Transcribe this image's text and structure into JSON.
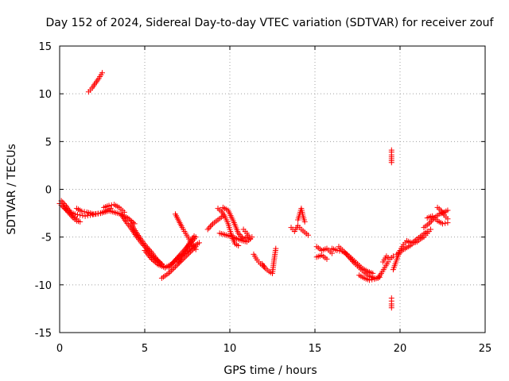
{
  "chart_data": {
    "type": "scatter",
    "title": "Day 152 of 2024, Sidereal Day-to-day VTEC variation (SDTVAR) for receiver zouf",
    "xlabel": "GPS time / hours",
    "ylabel": "SDTVAR / TECUs",
    "xlim": [
      0,
      25
    ],
    "ylim": [
      -15,
      15
    ],
    "xticks": [
      0,
      5,
      10,
      15,
      20,
      25
    ],
    "yticks": [
      -15,
      -10,
      -5,
      0,
      5,
      10,
      15
    ],
    "grid": true,
    "marker": "+",
    "marker_color": "#ff0000",
    "series": [
      {
        "name": "SDTVAR",
        "segments": [
          {
            "x": [
              0.0,
              0.3,
              0.6,
              0.9,
              1.2,
              1.5,
              1.8,
              2.1,
              2.4,
              2.7,
              3.0
            ],
            "y": [
              -1.5,
              -2.0,
              -2.4,
              -2.6,
              -2.7,
              -2.8,
              -2.7,
              -2.6,
              -2.5,
              -2.3,
              -2.0
            ]
          },
          {
            "x": [
              0.2,
              0.5,
              0.8,
              1.0,
              1.2
            ],
            "y": [
              -1.8,
              -2.4,
              -3.0,
              -3.3,
              -3.4
            ]
          },
          {
            "x": [
              0.1,
              0.4,
              0.7,
              1.0
            ],
            "y": [
              -1.2,
              -1.8,
              -2.6,
              -3.1
            ]
          },
          {
            "x": [
              1.0,
              1.3,
              1.6,
              2.0,
              2.4,
              2.8
            ],
            "y": [
              -2.0,
              -2.3,
              -2.4,
              -2.6,
              -2.5,
              -2.3
            ]
          },
          {
            "x": [
              1.7,
              1.9,
              2.1,
              2.3,
              2.5
            ],
            "y": [
              10.2,
              10.6,
              11.1,
              11.6,
              12.2
            ]
          },
          {
            "x": [
              2.8,
              3.2,
              3.6,
              4.0,
              4.4
            ],
            "y": [
              -2.2,
              -2.4,
              -2.6,
              -3.0,
              -3.6
            ]
          },
          {
            "x": [
              2.6,
              2.9,
              3.2,
              3.5,
              3.8
            ],
            "y": [
              -1.9,
              -1.7,
              -1.6,
              -1.9,
              -2.4
            ]
          },
          {
            "x": [
              3.6,
              3.9,
              4.2,
              4.5,
              4.8,
              5.1,
              5.4,
              5.7,
              6.0
            ],
            "y": [
              -2.6,
              -3.4,
              -4.1,
              -4.9,
              -5.6,
              -6.2,
              -6.9,
              -7.4,
              -7.8
            ]
          },
          {
            "x": [
              4.2,
              4.5,
              4.8,
              5.1,
              5.4,
              5.7,
              6.0,
              6.2
            ],
            "y": [
              -3.6,
              -4.5,
              -5.3,
              -6.0,
              -6.6,
              -7.3,
              -7.9,
              -8.2
            ]
          },
          {
            "x": [
              5.0,
              5.4,
              5.8,
              6.2,
              6.6,
              7.0,
              7.4,
              7.8,
              8.2
            ],
            "y": [
              -6.4,
              -7.3,
              -7.9,
              -8.2,
              -7.8,
              -7.1,
              -6.6,
              -6.0,
              -5.6
            ]
          },
          {
            "x": [
              6.0,
              6.4,
              6.8,
              7.2,
              7.6,
              8.0
            ],
            "y": [
              -9.3,
              -8.8,
              -8.1,
              -7.4,
              -6.7,
              -6.0
            ]
          },
          {
            "x": [
              6.4,
              6.8,
              7.2,
              7.6,
              8.0
            ],
            "y": [
              -8.2,
              -7.4,
              -6.6,
              -5.8,
              -5.0
            ]
          },
          {
            "x": [
              7.0,
              7.3,
              7.6,
              7.9
            ],
            "y": [
              -7.6,
              -6.6,
              -5.7,
              -4.9
            ]
          },
          {
            "x": [
              6.8,
              7.0,
              7.2,
              7.4,
              7.6,
              7.8,
              8.0
            ],
            "y": [
              -2.6,
              -3.3,
              -4.0,
              -4.6,
              -5.2,
              -5.8,
              -6.3
            ]
          },
          {
            "x": [
              8.7,
              9.0,
              9.3,
              9.6
            ],
            "y": [
              -4.2,
              -3.6,
              -3.2,
              -2.8
            ]
          },
          {
            "x": [
              9.3,
              9.5,
              9.7,
              9.9,
              10.1,
              10.3,
              10.5
            ],
            "y": [
              -2.0,
              -2.3,
              -2.8,
              -3.6,
              -4.8,
              -5.7,
              -5.9
            ]
          },
          {
            "x": [
              9.6,
              9.9,
              10.2,
              10.5,
              10.8,
              11.0
            ],
            "y": [
              -1.9,
              -2.2,
              -3.3,
              -4.6,
              -5.2,
              -5.0
            ]
          },
          {
            "x": [
              9.4,
              9.8,
              10.2,
              10.6,
              11.0,
              11.3
            ],
            "y": [
              -4.6,
              -4.8,
              -5.0,
              -5.3,
              -5.5,
              -5.0
            ]
          },
          {
            "x": [
              10.8,
              11.0,
              11.2
            ],
            "y": [
              -4.2,
              -4.6,
              -5.2
            ]
          },
          {
            "x": [
              11.4,
              11.6,
              11.8,
              12.0
            ],
            "y": [
              -6.8,
              -7.4,
              -7.8,
              -8.1
            ]
          },
          {
            "x": [
              11.9,
              12.1,
              12.3,
              12.5,
              12.6,
              12.7
            ],
            "y": [
              -7.8,
              -8.3,
              -8.6,
              -8.8,
              -7.4,
              -6.2
            ]
          },
          {
            "x": [
              13.6,
              13.8,
              14.0,
              14.2,
              14.4,
              14.6
            ],
            "y": [
              -4.0,
              -4.4,
              -3.8,
              -4.2,
              -4.5,
              -4.8
            ]
          },
          {
            "x": [
              14.0,
              14.1,
              14.2,
              14.3,
              14.4
            ],
            "y": [
              -3.2,
              -2.6,
              -2.0,
              -2.8,
              -3.4
            ]
          },
          {
            "x": [
              15.1,
              15.4,
              15.7,
              16.0
            ],
            "y": [
              -6.0,
              -6.4,
              -6.2,
              -6.7
            ]
          },
          {
            "x": [
              15.1,
              15.4,
              15.7
            ],
            "y": [
              -7.1,
              -6.9,
              -7.3
            ]
          },
          {
            "x": [
              16.0,
              16.3,
              16.6,
              16.9,
              17.2,
              17.5,
              17.8,
              18.1,
              18.4
            ],
            "y": [
              -6.2,
              -6.4,
              -6.5,
              -6.8,
              -7.3,
              -7.8,
              -8.3,
              -8.6,
              -8.8
            ]
          },
          {
            "x": [
              16.4,
              16.7,
              17.0,
              17.3,
              17.6,
              17.9,
              18.2,
              18.5
            ],
            "y": [
              -6.0,
              -6.5,
              -7.1,
              -7.7,
              -8.2,
              -8.7,
              -9.1,
              -9.3
            ]
          },
          {
            "x": [
              17.6,
              17.9,
              18.2,
              18.5,
              18.8
            ],
            "y": [
              -9.0,
              -9.3,
              -9.5,
              -9.4,
              -9.2
            ]
          },
          {
            "x": [
              18.7,
              18.9,
              19.1,
              19.3
            ],
            "y": [
              -9.3,
              -8.8,
              -8.2,
              -7.6
            ]
          },
          {
            "x": [
              19.0,
              19.2,
              19.4,
              19.6
            ],
            "y": [
              -7.6,
              -7.0,
              -7.3,
              -7.0
            ]
          },
          {
            "x": [
              19.5,
              19.5,
              19.5,
              19.5,
              19.5
            ],
            "y": [
              2.8,
              3.2,
              3.6,
              3.9,
              4.1
            ]
          },
          {
            "x": [
              19.5,
              19.5,
              19.5,
              19.5,
              19.5
            ],
            "y": [
              -11.4,
              -11.7,
              -12.0,
              -12.2,
              -12.4
            ]
          },
          {
            "x": [
              19.6,
              19.8,
              20.0,
              20.2,
              20.4
            ],
            "y": [
              -8.4,
              -7.4,
              -6.4,
              -5.8,
              -5.4
            ]
          },
          {
            "x": [
              19.8,
              20.0,
              20.2,
              20.4,
              20.6,
              20.8,
              21.0,
              21.2,
              21.4,
              21.6,
              21.8
            ],
            "y": [
              -6.8,
              -6.6,
              -6.3,
              -6.1,
              -5.9,
              -5.6,
              -5.5,
              -5.2,
              -5.0,
              -4.6,
              -4.2
            ]
          },
          {
            "x": [
              20.4,
              20.7,
              21.0,
              21.3,
              21.6
            ],
            "y": [
              -5.4,
              -5.6,
              -5.2,
              -4.8,
              -4.4
            ]
          },
          {
            "x": [
              21.4,
              21.7,
              22.0,
              22.3,
              22.6,
              22.8
            ],
            "y": [
              -4.0,
              -3.6,
              -3.0,
              -2.6,
              -2.4,
              -2.2
            ]
          },
          {
            "x": [
              21.6,
              21.9,
              22.2,
              22.5,
              22.8
            ],
            "y": [
              -3.0,
              -2.8,
              -3.3,
              -3.6,
              -3.5
            ]
          },
          {
            "x": [
              22.2,
              22.4,
              22.6,
              22.8
            ],
            "y": [
              -1.9,
              -2.2,
              -2.7,
              -3.1
            ]
          }
        ]
      }
    ]
  }
}
